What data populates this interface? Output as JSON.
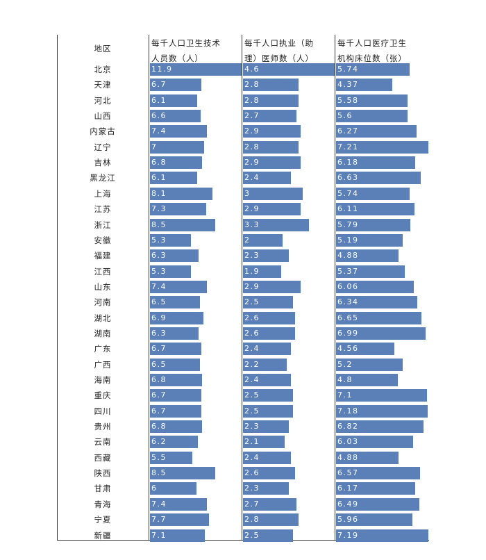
{
  "table": {
    "region_header": "地区",
    "columns": [
      {
        "label_line1": "每千人口卫生技术",
        "label_line2": "人员数（人）"
      },
      {
        "label_line1": "每千人口执业（助",
        "label_line2": "理）医师数（人）"
      },
      {
        "label_line1": "每千人口医疗卫生",
        "label_line2": "机构床位数（张）"
      }
    ]
  },
  "chart_data": {
    "type": "bar",
    "orientation": "horizontal",
    "bar_color": "#5b80b8",
    "label_color": "#ffffff",
    "categories": [
      "北京",
      "天津",
      "河北",
      "山西",
      "内蒙古",
      "辽宁",
      "吉林",
      "黑龙江",
      "上海",
      "江苏",
      "浙江",
      "安徽",
      "福建",
      "江西",
      "山东",
      "河南",
      "湖北",
      "湖南",
      "广东",
      "广西",
      "海南",
      "重庆",
      "四川",
      "贵州",
      "云南",
      "西藏",
      "陕西",
      "甘肃",
      "青海",
      "宁夏",
      "新疆"
    ],
    "series": [
      {
        "name": "每千人口卫生技术人员数（人）",
        "values": [
          11.9,
          6.7,
          6.1,
          6.6,
          7.4,
          7,
          6.8,
          6.1,
          8.1,
          7.3,
          8.5,
          5.3,
          6.3,
          5.3,
          7.4,
          6.5,
          6.9,
          6.3,
          6.7,
          6.5,
          6.8,
          6.7,
          6.7,
          6.8,
          6.2,
          5.5,
          8.5,
          6,
          7.4,
          7.7,
          7.1
        ],
        "labels": [
          "11.9",
          "6.7",
          "6.1",
          "6.6",
          "7.4",
          "7",
          "6.8",
          "6.1",
          "8.1",
          "7.3",
          "8.5",
          "5.3",
          "6.3",
          "5.3",
          "7.4",
          "6.5",
          "6.9",
          "6.3",
          "6.7",
          "6.5",
          "6.8",
          "6.7",
          "6.7",
          "6.8",
          "6.2",
          "5.5",
          "8.5",
          "6",
          "7.4",
          "7.7",
          "7.1"
        ],
        "max": 11.9
      },
      {
        "name": "每千人口执业（助理）医师数（人）",
        "values": [
          4.6,
          2.8,
          2.8,
          2.7,
          2.9,
          2.8,
          2.9,
          2.4,
          3,
          2.9,
          3.3,
          2,
          2.3,
          1.9,
          2.9,
          2.5,
          2.6,
          2.6,
          2.4,
          2.2,
          2.4,
          2.5,
          2.5,
          2.3,
          2.1,
          2.4,
          2.6,
          2.3,
          2.7,
          2.8,
          2.5
        ],
        "labels": [
          "4.6",
          "2.8",
          "2.8",
          "2.7",
          "2.9",
          "2.8",
          "2.9",
          "2.4",
          "3",
          "2.9",
          "3.3",
          "2",
          "2.3",
          "1.9",
          "2.9",
          "2.5",
          "2.6",
          "2.6",
          "2.4",
          "2.2",
          "2.4",
          "2.5",
          "2.5",
          "2.3",
          "2.1",
          "2.4",
          "2.6",
          "2.3",
          "2.7",
          "2.8",
          "2.5"
        ],
        "max": 4.6
      },
      {
        "name": "每千人口医疗卫生机构床位数（张）",
        "values": [
          5.74,
          4.37,
          5.58,
          5.6,
          6.27,
          7.21,
          6.18,
          6.63,
          5.74,
          6.11,
          5.79,
          5.19,
          4.88,
          5.37,
          6.06,
          6.34,
          6.65,
          6.99,
          4.56,
          5.2,
          4.8,
          7.1,
          7.18,
          6.82,
          6.03,
          4.88,
          6.57,
          6.17,
          6.49,
          5.96,
          7.19
        ],
        "labels": [
          "5.74",
          "4.37",
          "5.58",
          "5.6",
          "6.27",
          "7.21",
          "6.18",
          "6.63",
          "5.74",
          "6.11",
          "5.79",
          "5.19",
          "4.88",
          "5.37",
          "6.06",
          "6.34",
          "6.65",
          "6.99",
          "4.56",
          "5.2",
          "4.8",
          "7.1",
          "7.18",
          "6.82",
          "6.03",
          "4.88",
          "6.57",
          "6.17",
          "6.49",
          "5.96",
          "7.19"
        ],
        "max": 7.21
      }
    ]
  }
}
